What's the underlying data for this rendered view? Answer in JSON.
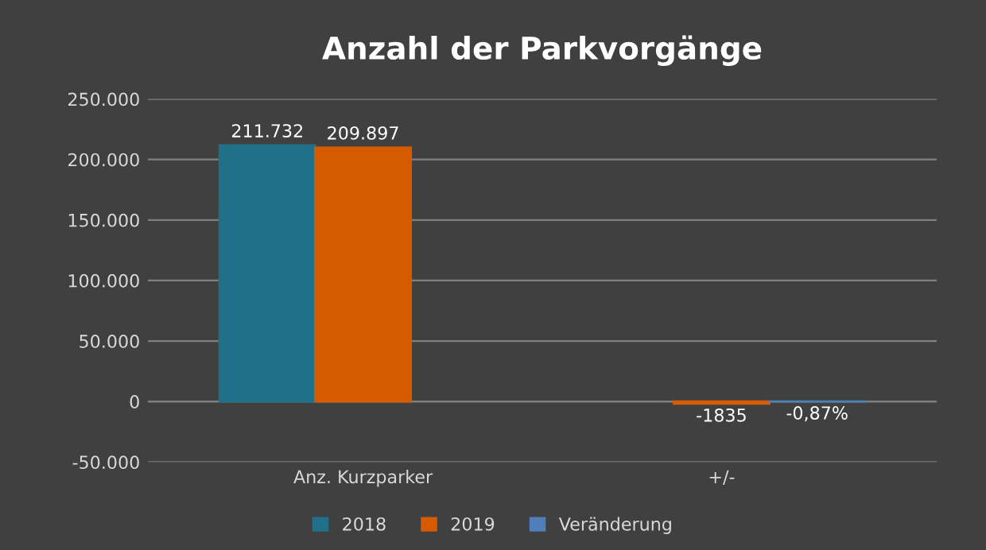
{
  "chart_data": {
    "type": "bar",
    "title": "Anzahl der Parkvorgänge",
    "categories": [
      "Anz. Kurzparker",
      "+/-"
    ],
    "series": [
      {
        "name": "2018",
        "color": "#1f7088",
        "values": [
          211732,
          null
        ],
        "value_labels": [
          "211.732",
          null
        ]
      },
      {
        "name": "2019",
        "color": "#d65a00",
        "values": [
          209897,
          -1835
        ],
        "value_labels": [
          "209.897",
          "-1835"
        ]
      },
      {
        "name": "Veränderung",
        "color": "#4f7fb8",
        "values": [
          null,
          -0.87
        ],
        "value_labels": [
          null,
          "-0,87%"
        ]
      }
    ],
    "ylim": [
      -50000,
      250000
    ],
    "yticks": [
      {
        "value": -50000,
        "label": "-50.000"
      },
      0,
      {
        "value": 50000,
        "label": "50.000"
      },
      {
        "value": 100000,
        "label": "100.000"
      },
      {
        "value": 150000,
        "label": "150.000"
      },
      {
        "value": 200000,
        "label": "200.000"
      },
      {
        "value": 250000,
        "label": "250.000"
      }
    ],
    "grid": "y",
    "legend": "bottom"
  }
}
